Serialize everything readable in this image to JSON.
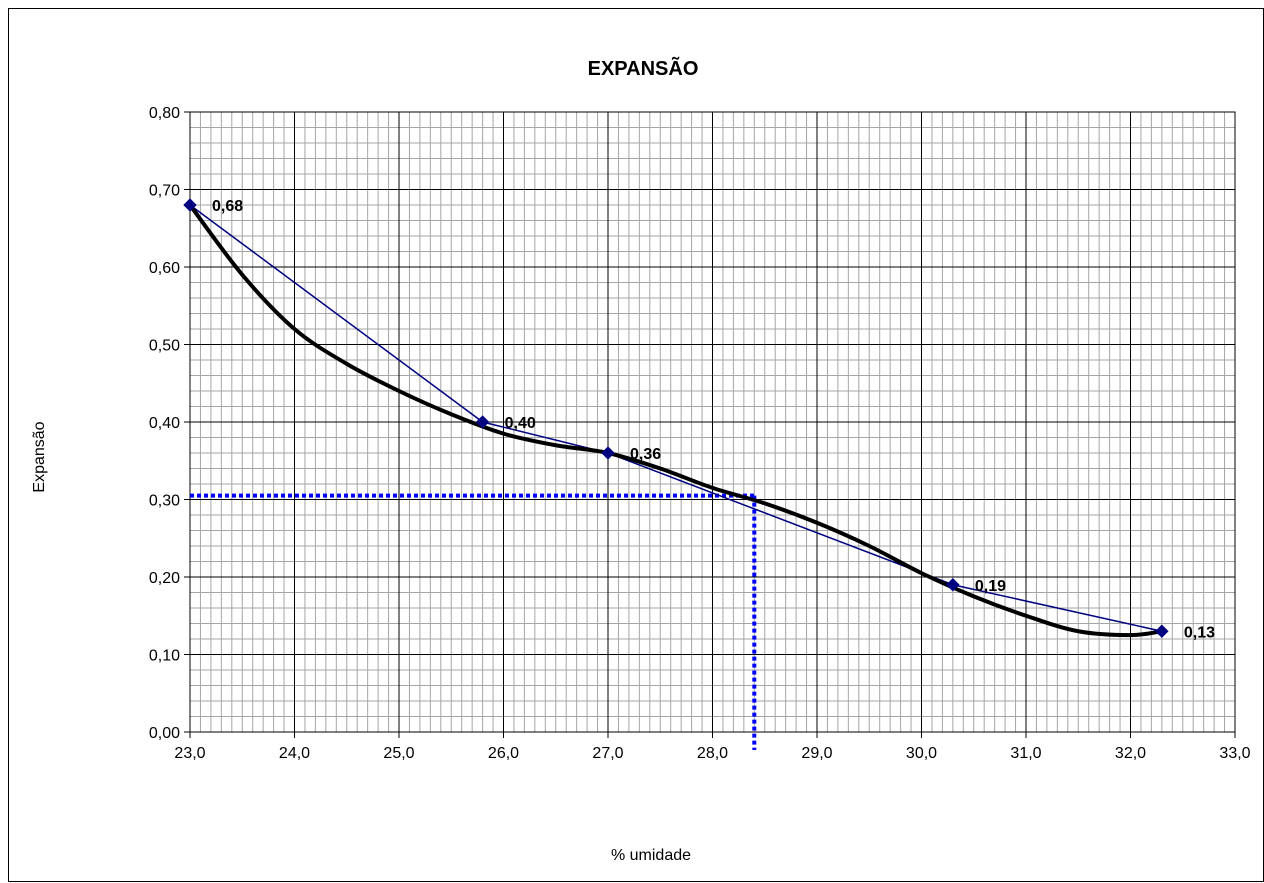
{
  "chart_data": {
    "type": "line",
    "title": "EXPANSÃO",
    "xlabel": "% umidade",
    "ylabel": "Expansão",
    "xlim": [
      23.0,
      33.0
    ],
    "ylim": [
      0.0,
      0.8
    ],
    "x_ticks": [
      "23,0",
      "24,0",
      "25,0",
      "26,0",
      "27,0",
      "28,0",
      "29,0",
      "30,0",
      "31,0",
      "32,0",
      "33,0"
    ],
    "y_ticks": [
      "0,00",
      "0,10",
      "0,20",
      "0,30",
      "0,40",
      "0,50",
      "0,60",
      "0,70",
      "0,80"
    ],
    "grid": true,
    "legend": "none",
    "series": [
      {
        "x": [
          23.0,
          25.8,
          27.0,
          30.3,
          32.3
        ],
        "y": [
          0.68,
          0.4,
          0.36,
          0.19,
          0.13
        ],
        "data_labels": [
          "0,68",
          "0,40",
          "0,36",
          "0,19",
          "0,13"
        ],
        "color": "#000080",
        "marker": "diamond"
      }
    ],
    "trend_curve": {
      "x": [
        23.0,
        23.5,
        24.0,
        24.5,
        25.0,
        25.5,
        26.0,
        26.5,
        27.0,
        27.5,
        28.0,
        28.5,
        29.0,
        29.5,
        30.0,
        30.5,
        31.0,
        31.5,
        32.0,
        32.3
      ],
      "y": [
        0.68,
        0.59,
        0.52,
        0.475,
        0.44,
        0.41,
        0.385,
        0.37,
        0.36,
        0.34,
        0.315,
        0.295,
        0.27,
        0.24,
        0.205,
        0.175,
        0.15,
        0.13,
        0.125,
        0.13
      ],
      "color": "#000000"
    },
    "reference_lines": {
      "x": 28.4,
      "y": 0.305,
      "color": "#0000FF"
    }
  }
}
